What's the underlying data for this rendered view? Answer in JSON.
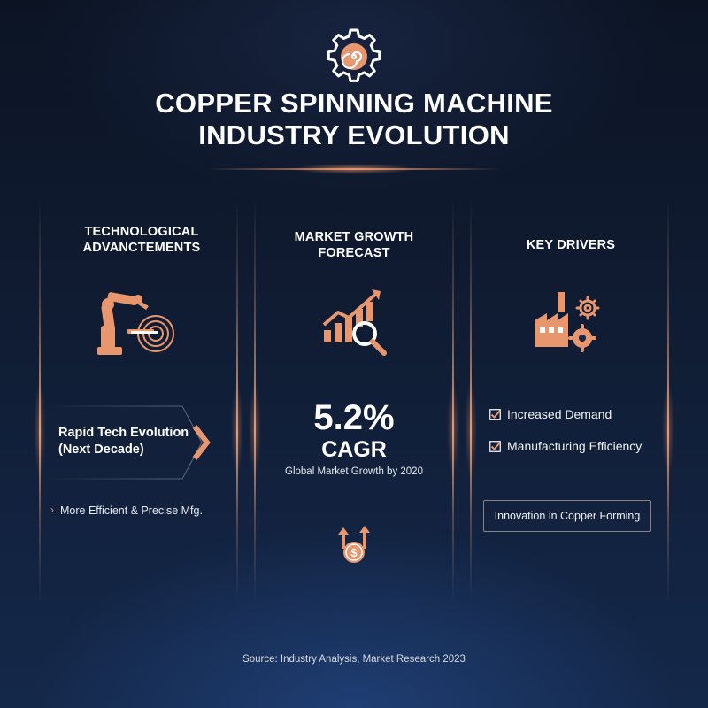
{
  "header": {
    "logo_icon": "gear-with-spiral-icon",
    "title_line1": "COPPER SPINNING MACHINE",
    "title_line2": "INDUSTRY EVOLUTION"
  },
  "columns": {
    "tech": {
      "title_line1": "TECHNOLOGICAL",
      "title_line2": "ADVANCTEMENTS",
      "icon": "robotic-arm-spinning-icon",
      "callout_line1": "Rapid Tech Evolution",
      "callout_line2": "(Next Decade)",
      "bullet": "More Efficient & Precise Mfg."
    },
    "market": {
      "title_line1": "MARKET GROWTH",
      "title_line2": "FORECAST",
      "icon": "growth-chart-magnifier-icon",
      "value": "5.2%",
      "unit": "CAGR",
      "caption": "Global Market Growth by 2020",
      "bottom_icon": "dollar-growth-arrows-icon"
    },
    "drivers": {
      "title": "KEY DRIVERS",
      "icon": "factory-gears-icon",
      "items": [
        "Increased Demand",
        "Manufacturing Efficiency"
      ],
      "highlight": "Innovation in Copper Forming"
    }
  },
  "footer": {
    "source": "Source: Industry Analysis, Market Research 2023"
  },
  "colors": {
    "accent": "#e8966e",
    "background_top": "#0c1424",
    "background_bottom": "#14284a"
  }
}
